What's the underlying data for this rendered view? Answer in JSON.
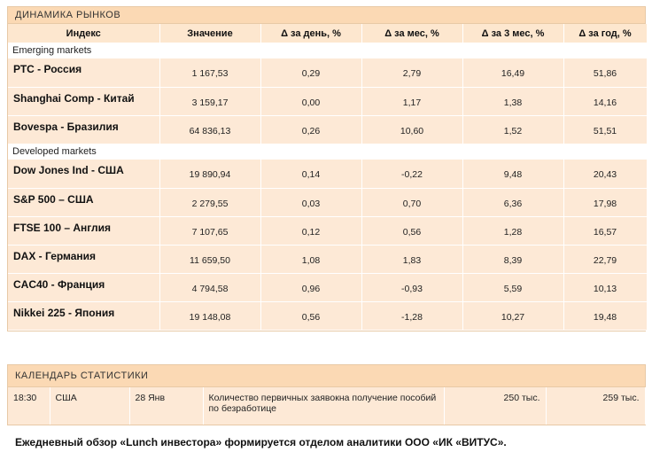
{
  "markets": {
    "title": "ДИНАМИКА  РЫНКОВ",
    "headers": [
      "Индекс",
      "Значение",
      "Δ за день, %",
      "Δ за мес, %",
      "Δ за 3 мес, %",
      "Δ за год, %"
    ],
    "groups": [
      {
        "label": "Emerging markets",
        "rows": [
          {
            "name": "РТС - Россия",
            "value": "1 167,53",
            "day": "0,29",
            "month": "2,79",
            "three_month": "16,49",
            "year": "51,86"
          },
          {
            "name": "Shanghai Comp - Китай",
            "value": "3 159,17",
            "day": "0,00",
            "month": "1,17",
            "three_month": "1,38",
            "year": "14,16"
          },
          {
            "name": "Bovespa - Бразилия",
            "value": "64 836,13",
            "day": "0,26",
            "month": "10,60",
            "three_month": "1,52",
            "year": "51,51"
          }
        ]
      },
      {
        "label": "Developed markets",
        "rows": [
          {
            "name": "Dow Jones Ind - США",
            "value": "19 890,94",
            "day": "0,14",
            "month": "-0,22",
            "three_month": "9,48",
            "year": "20,43"
          },
          {
            "name": "S&P 500  –  США",
            "value": "2 279,55",
            "day": "0,03",
            "month": "0,70",
            "three_month": "6,36",
            "year": "17,98"
          },
          {
            "name": "FTSE 100  –  Англия",
            "value": "7 107,65",
            "day": "0,12",
            "month": "0,56",
            "three_month": "1,28",
            "year": "16,57"
          },
          {
            "name": "DAX - Германия",
            "value": "11 659,50",
            "day": "1,08",
            "month": "1,83",
            "three_month": "8,39",
            "year": "22,79"
          },
          {
            "name": "CAC40 - Франция",
            "value": "4 794,58",
            "day": "0,96",
            "month": "-0,93",
            "three_month": "5,59",
            "year": "10,13"
          },
          {
            "name": "Nikkei 225 - Япония",
            "value": "19 148,08",
            "day": "0,56",
            "month": "-1,28",
            "three_month": "10,27",
            "year": "19,48"
          }
        ]
      }
    ]
  },
  "calendar": {
    "title": "КАЛЕНДАРЬ  СТАТИСТИКИ",
    "rows": [
      {
        "time": "18:30",
        "country": "США",
        "date": "28 Янв",
        "event": "Количество первичных заявокна получение пособий по безработице",
        "forecast": "250 тыс.",
        "previous": "259 тыс."
      }
    ]
  },
  "footer": "Ежедневный обзор «Lunch инвестора» формируется отделом аналитики ООО «ИК «ВИТУС»."
}
